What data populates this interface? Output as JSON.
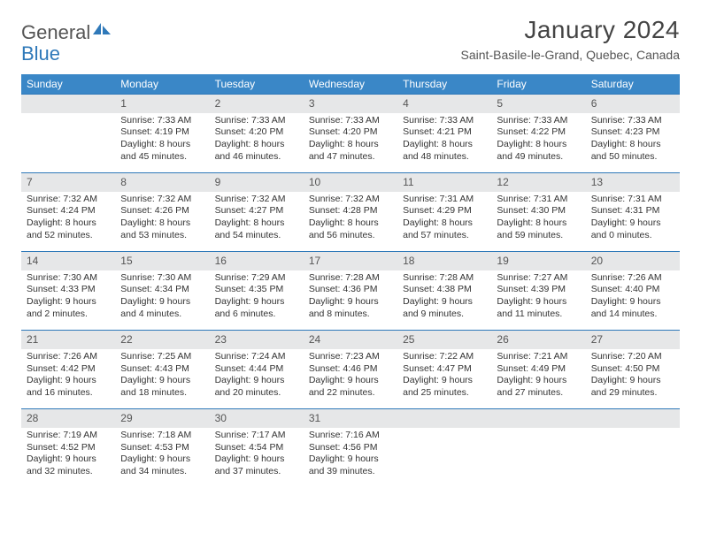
{
  "header": {
    "logo_part1": "General",
    "logo_part2": "Blue",
    "title": "January 2024",
    "location": "Saint-Basile-le-Grand, Quebec, Canada"
  },
  "colors": {
    "header_bg": "#3a87c7",
    "daynum_bg": "#e6e7e8",
    "row_divider": "#2f79b9",
    "text": "#333333",
    "logo_gray": "#555555",
    "logo_blue": "#2f79b9"
  },
  "weekdays": [
    "Sunday",
    "Monday",
    "Tuesday",
    "Wednesday",
    "Thursday",
    "Friday",
    "Saturday"
  ],
  "weeks": [
    {
      "nums": [
        "",
        "1",
        "2",
        "3",
        "4",
        "5",
        "6"
      ],
      "cells": [
        "",
        "Sunrise: 7:33 AM\nSunset: 4:19 PM\nDaylight: 8 hours and 45 minutes.",
        "Sunrise: 7:33 AM\nSunset: 4:20 PM\nDaylight: 8 hours and 46 minutes.",
        "Sunrise: 7:33 AM\nSunset: 4:20 PM\nDaylight: 8 hours and 47 minutes.",
        "Sunrise: 7:33 AM\nSunset: 4:21 PM\nDaylight: 8 hours and 48 minutes.",
        "Sunrise: 7:33 AM\nSunset: 4:22 PM\nDaylight: 8 hours and 49 minutes.",
        "Sunrise: 7:33 AM\nSunset: 4:23 PM\nDaylight: 8 hours and 50 minutes."
      ]
    },
    {
      "nums": [
        "7",
        "8",
        "9",
        "10",
        "11",
        "12",
        "13"
      ],
      "cells": [
        "Sunrise: 7:32 AM\nSunset: 4:24 PM\nDaylight: 8 hours and 52 minutes.",
        "Sunrise: 7:32 AM\nSunset: 4:26 PM\nDaylight: 8 hours and 53 minutes.",
        "Sunrise: 7:32 AM\nSunset: 4:27 PM\nDaylight: 8 hours and 54 minutes.",
        "Sunrise: 7:32 AM\nSunset: 4:28 PM\nDaylight: 8 hours and 56 minutes.",
        "Sunrise: 7:31 AM\nSunset: 4:29 PM\nDaylight: 8 hours and 57 minutes.",
        "Sunrise: 7:31 AM\nSunset: 4:30 PM\nDaylight: 8 hours and 59 minutes.",
        "Sunrise: 7:31 AM\nSunset: 4:31 PM\nDaylight: 9 hours and 0 minutes."
      ]
    },
    {
      "nums": [
        "14",
        "15",
        "16",
        "17",
        "18",
        "19",
        "20"
      ],
      "cells": [
        "Sunrise: 7:30 AM\nSunset: 4:33 PM\nDaylight: 9 hours and 2 minutes.",
        "Sunrise: 7:30 AM\nSunset: 4:34 PM\nDaylight: 9 hours and 4 minutes.",
        "Sunrise: 7:29 AM\nSunset: 4:35 PM\nDaylight: 9 hours and 6 minutes.",
        "Sunrise: 7:28 AM\nSunset: 4:36 PM\nDaylight: 9 hours and 8 minutes.",
        "Sunrise: 7:28 AM\nSunset: 4:38 PM\nDaylight: 9 hours and 9 minutes.",
        "Sunrise: 7:27 AM\nSunset: 4:39 PM\nDaylight: 9 hours and 11 minutes.",
        "Sunrise: 7:26 AM\nSunset: 4:40 PM\nDaylight: 9 hours and 14 minutes."
      ]
    },
    {
      "nums": [
        "21",
        "22",
        "23",
        "24",
        "25",
        "26",
        "27"
      ],
      "cells": [
        "Sunrise: 7:26 AM\nSunset: 4:42 PM\nDaylight: 9 hours and 16 minutes.",
        "Sunrise: 7:25 AM\nSunset: 4:43 PM\nDaylight: 9 hours and 18 minutes.",
        "Sunrise: 7:24 AM\nSunset: 4:44 PM\nDaylight: 9 hours and 20 minutes.",
        "Sunrise: 7:23 AM\nSunset: 4:46 PM\nDaylight: 9 hours and 22 minutes.",
        "Sunrise: 7:22 AM\nSunset: 4:47 PM\nDaylight: 9 hours and 25 minutes.",
        "Sunrise: 7:21 AM\nSunset: 4:49 PM\nDaylight: 9 hours and 27 minutes.",
        "Sunrise: 7:20 AM\nSunset: 4:50 PM\nDaylight: 9 hours and 29 minutes."
      ]
    },
    {
      "nums": [
        "28",
        "29",
        "30",
        "31",
        "",
        "",
        ""
      ],
      "cells": [
        "Sunrise: 7:19 AM\nSunset: 4:52 PM\nDaylight: 9 hours and 32 minutes.",
        "Sunrise: 7:18 AM\nSunset: 4:53 PM\nDaylight: 9 hours and 34 minutes.",
        "Sunrise: 7:17 AM\nSunset: 4:54 PM\nDaylight: 9 hours and 37 minutes.",
        "Sunrise: 7:16 AM\nSunset: 4:56 PM\nDaylight: 9 hours and 39 minutes.",
        "",
        "",
        ""
      ]
    }
  ]
}
